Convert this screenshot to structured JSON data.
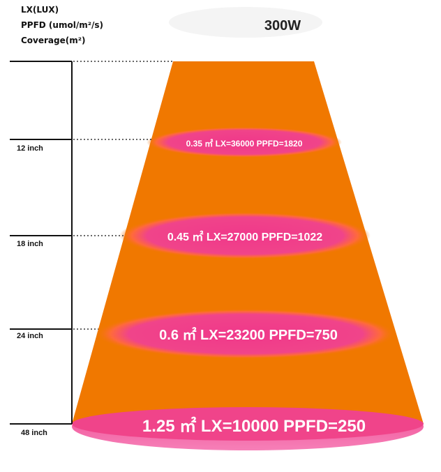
{
  "legend": [
    "LX(LUX)",
    "PPFD (umol/m²/s)",
    "Coverage(m²)"
  ],
  "title": "300W",
  "levels": [
    {
      "distance": "12 inch",
      "label": "0.35 ㎡  LX=36000 PPFD=1820"
    },
    {
      "distance": "18 inch",
      "label": "0.45 ㎡  LX=27000  PPFD=1022"
    },
    {
      "distance": "24 inch",
      "label": "0.6 ㎡  LX=23200 PPFD=750"
    },
    {
      "distance": "48 inch",
      "label": "1.25 ㎡  LX=10000 PPFD=250"
    }
  ]
}
